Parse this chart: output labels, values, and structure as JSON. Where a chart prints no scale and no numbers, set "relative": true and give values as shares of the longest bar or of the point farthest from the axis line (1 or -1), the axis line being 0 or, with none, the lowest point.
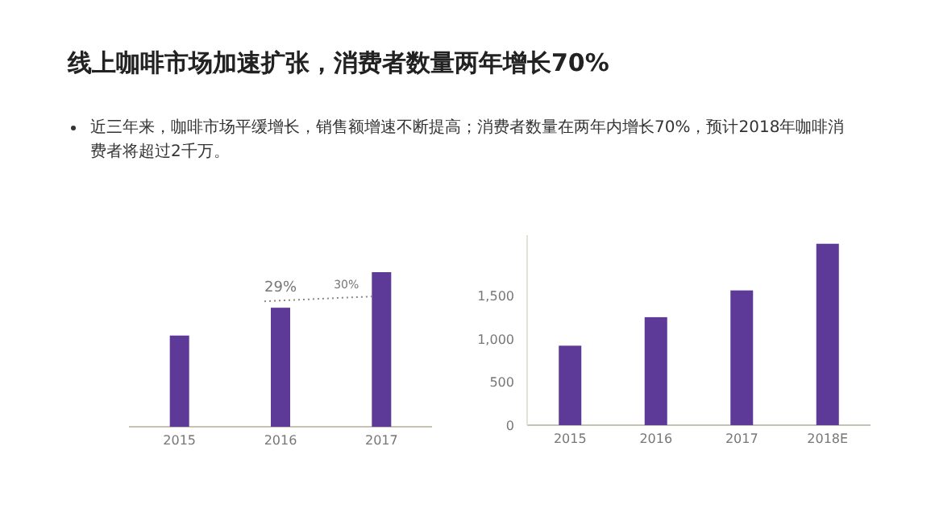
{
  "chart_data": [
    {
      "type": "bar",
      "title": "线上咖啡市场加速扩张，消费者数量两年增长70%",
      "subtitle": "近三年来，咖啡市场平缓增长，销售额增速不断提高；消费者数量在两年内增长70%，预计2018年咖啡消费者将超过2千万。",
      "relative": true,
      "categories": [
        "2015",
        "2016",
        "2017"
      ],
      "values": [
        0.59,
        0.77,
        1
      ],
      "color": "#5e3a98",
      "annotations": [
        "29%",
        "30%"
      ]
    },
    {
      "type": "bar",
      "categories": [
        "2015",
        "2016",
        "2017",
        "2018E"
      ],
      "values": [
        920,
        1250,
        1560,
        2100
      ],
      "color": "#5e3a98",
      "ylim": [
        0,
        2200
      ],
      "yticks": [
        0,
        500,
        {
          "value": 1000,
          "label": "1,000"
        },
        {
          "value": 1500,
          "label": "1,500"
        }
      ]
    }
  ]
}
